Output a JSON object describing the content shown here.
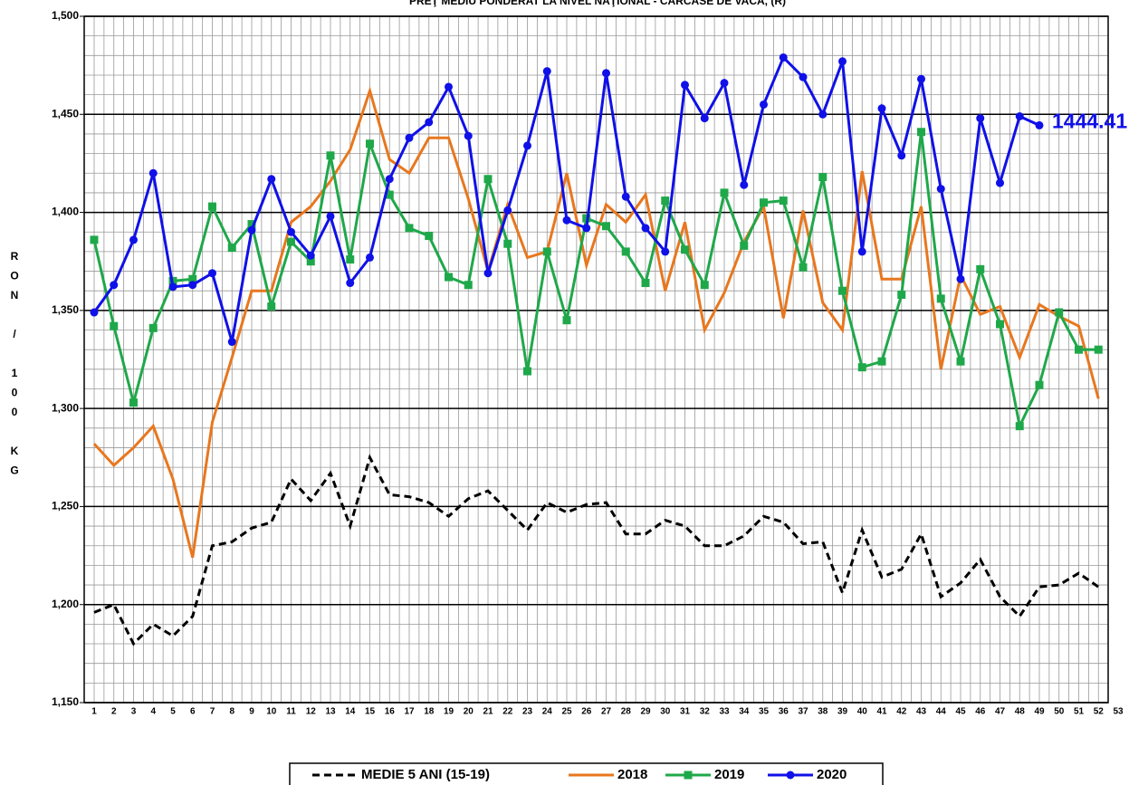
{
  "chart_data": {
    "type": "line",
    "title": "PREŢ MEDIU PONDERAT LA NIVEL NAŢIONAL - CARCASE DE VACĂ, (R)",
    "y_label": "RON / 100 KG",
    "categories": [
      1,
      2,
      3,
      4,
      5,
      6,
      7,
      8,
      9,
      10,
      11,
      12,
      13,
      14,
      15,
      16,
      17,
      18,
      19,
      20,
      21,
      22,
      23,
      24,
      25,
      26,
      27,
      28,
      29,
      30,
      31,
      32,
      33,
      34,
      35,
      36,
      37,
      38,
      39,
      40,
      41,
      42,
      43,
      44,
      45,
      46,
      47,
      48,
      49,
      50,
      51,
      52,
      53
    ],
    "ylim": [
      1150,
      1500
    ],
    "yticks": [
      {
        "value": 1150,
        "label": "1,150"
      },
      {
        "value": 1200,
        "label": "1,200"
      },
      {
        "value": 1250,
        "label": "1,250"
      },
      {
        "value": 1300,
        "label": "1,300"
      },
      {
        "value": 1350,
        "label": "1,350"
      },
      {
        "value": 1400,
        "label": "1,400"
      },
      {
        "value": 1450,
        "label": "1,450"
      },
      {
        "value": 1500,
        "label": "1,500"
      }
    ],
    "grid": true,
    "legend": "bottom",
    "series": [
      {
        "name": "MEDIE 5 ANI (15-19)",
        "color": "#000000",
        "line_style": "dashed",
        "marker": null,
        "values": [
          1196,
          1200,
          1180,
          1190,
          1184,
          1194,
          1230,
          1232,
          1239,
          1242,
          1264,
          1253,
          1267,
          1240,
          1275,
          1256,
          1255,
          1252,
          1245,
          1254,
          1258,
          1248,
          1238,
          1252,
          1247,
          1251,
          1252,
          1236,
          1236,
          1243,
          1240,
          1230,
          1230,
          1235,
          1245,
          1242,
          1231,
          1232,
          1206,
          1238,
          1214,
          1218,
          1236,
          1204,
          1211,
          1223,
          1204,
          1194,
          1209,
          1210,
          1216,
          1209,
          null
        ]
      },
      {
        "name": "2018",
        "color": "#e8771e",
        "line_style": "solid",
        "marker": null,
        "values": [
          1282,
          1271,
          1280,
          1291,
          1264,
          1224,
          1293,
          1326,
          1360,
          1360,
          1395,
          1403,
          1416,
          1432,
          1462,
          1427,
          1420,
          1438,
          1438,
          1407,
          1370,
          1404,
          1377,
          1380,
          1420,
          1373,
          1404,
          1395,
          1409,
          1360,
          1395,
          1340,
          1359,
          1385,
          1403,
          1346,
          1401,
          1354,
          1340,
          1421,
          1366,
          1366,
          1403,
          1320,
          1368,
          1348,
          1352,
          1326,
          1353,
          1347,
          1342,
          1305,
          null
        ]
      },
      {
        "name": "2019",
        "color": "#1fa84a",
        "line_style": "solid",
        "marker": "square",
        "values": [
          1386,
          1342,
          1303,
          1341,
          1365,
          1366,
          1403,
          1382,
          1394,
          1352,
          1385,
          1375,
          1429,
          1376,
          1435,
          1409,
          1392,
          1388,
          1367,
          1363,
          1417,
          1384,
          1319,
          1380,
          1345,
          1397,
          1393,
          1380,
          1364,
          1406,
          1381,
          1363,
          1410,
          1383,
          1405,
          1406,
          1372,
          1418,
          1360,
          1321,
          1324,
          1358,
          1441,
          1356,
          1324,
          1371,
          1343,
          1291,
          1312,
          1349,
          1330,
          1330,
          null
        ]
      },
      {
        "name": "2020",
        "color": "#1010e8",
        "line_style": "solid",
        "marker": "circle",
        "values": [
          1349,
          1363,
          1386,
          1420,
          1362,
          1363,
          1369,
          1334,
          1391,
          1417,
          1390,
          1378,
          1398,
          1364,
          1377,
          1417,
          1438,
          1446,
          1464,
          1439,
          1369,
          1401,
          1434,
          1472,
          1396,
          1392,
          1471,
          1408,
          1392,
          1380,
          1465,
          1448,
          1466,
          1414,
          1455,
          1479,
          1469,
          1450,
          1477,
          1380,
          1453,
          1429,
          1468,
          1412,
          1366,
          1448,
          1415,
          1449,
          1444.41,
          null,
          null,
          null,
          null
        ],
        "labeled_point": 48
      }
    ]
  }
}
